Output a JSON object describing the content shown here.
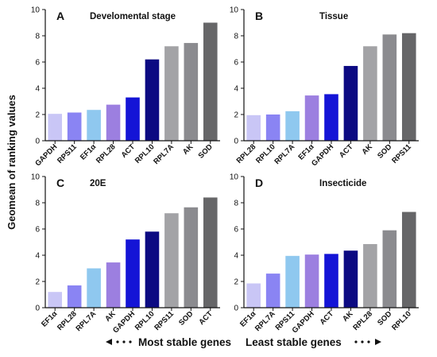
{
  "figure": {
    "y_axis_label": "Geomean of ranking values",
    "footer_left": "Most stable genes",
    "footer_right": "Least stable genes"
  },
  "chart_data": [
    {
      "type": "bar",
      "panel": "A",
      "title": "Develomental stage",
      "categories": [
        "GAPDH",
        "RPS11",
        "EF1α",
        "RPL28",
        "ACT",
        "RPL10",
        "RPL7A",
        "AK",
        "SOD"
      ],
      "values": [
        2.05,
        2.15,
        2.35,
        2.75,
        3.3,
        6.2,
        7.2,
        7.45,
        9.0
      ],
      "colors": [
        "#c9c6f6",
        "#8a84f3",
        "#8fc8ef",
        "#9c7fe0",
        "#1414d6",
        "#0c0a82",
        "#a3a3a6",
        "#8b8b8f",
        "#666668"
      ],
      "ylim": [
        0,
        10
      ],
      "yticks": [
        0,
        2,
        4,
        6,
        8,
        10
      ]
    },
    {
      "type": "bar",
      "panel": "B",
      "title": "Tissue",
      "categories": [
        "RPL28",
        "RPL10",
        "RPL7A",
        "EF1α",
        "GAPDH",
        "ACT",
        "AK",
        "SOD",
        "RPS11"
      ],
      "values": [
        1.95,
        2.0,
        2.25,
        3.45,
        3.55,
        5.7,
        7.2,
        8.1,
        8.2
      ],
      "colors": [
        "#c9c6f6",
        "#8a84f3",
        "#8fc8ef",
        "#9c7fe0",
        "#1414d6",
        "#0c0a82",
        "#a3a3a6",
        "#8b8b8f",
        "#666668"
      ],
      "ylim": [
        0,
        10
      ],
      "yticks": [
        0,
        2,
        4,
        6,
        8,
        10
      ]
    },
    {
      "type": "bar",
      "panel": "C",
      "title": "20E",
      "categories": [
        "EF1α",
        "RPL28",
        "RPL7A",
        "AK",
        "GAPDH",
        "RPL10",
        "RPS11",
        "SOD",
        "ACT"
      ],
      "values": [
        1.2,
        1.7,
        3.0,
        3.45,
        5.2,
        5.8,
        7.2,
        7.65,
        8.4
      ],
      "colors": [
        "#c9c6f6",
        "#8a84f3",
        "#8fc8ef",
        "#9c7fe0",
        "#1414d6",
        "#0c0a82",
        "#a3a3a6",
        "#8b8b8f",
        "#666668"
      ],
      "ylim": [
        0,
        10
      ],
      "yticks": [
        0,
        2,
        4,
        6,
        8,
        10
      ]
    },
    {
      "type": "bar",
      "panel": "D",
      "title": "Insecticide",
      "categories": [
        "EF1α",
        "RPL7A",
        "RPS11",
        "GAPDH",
        "ACT",
        "AK",
        "RPL28",
        "SOD",
        "RPL10"
      ],
      "values": [
        1.85,
        2.6,
        3.95,
        4.05,
        4.1,
        4.35,
        4.85,
        5.9,
        7.3
      ],
      "colors": [
        "#c9c6f6",
        "#8a84f3",
        "#8fc8ef",
        "#9c7fe0",
        "#1414d6",
        "#0c0a82",
        "#a3a3a6",
        "#8b8b8f",
        "#666668"
      ],
      "ylim": [
        0,
        10
      ],
      "yticks": [
        0,
        2,
        4,
        6,
        8,
        10
      ]
    }
  ]
}
